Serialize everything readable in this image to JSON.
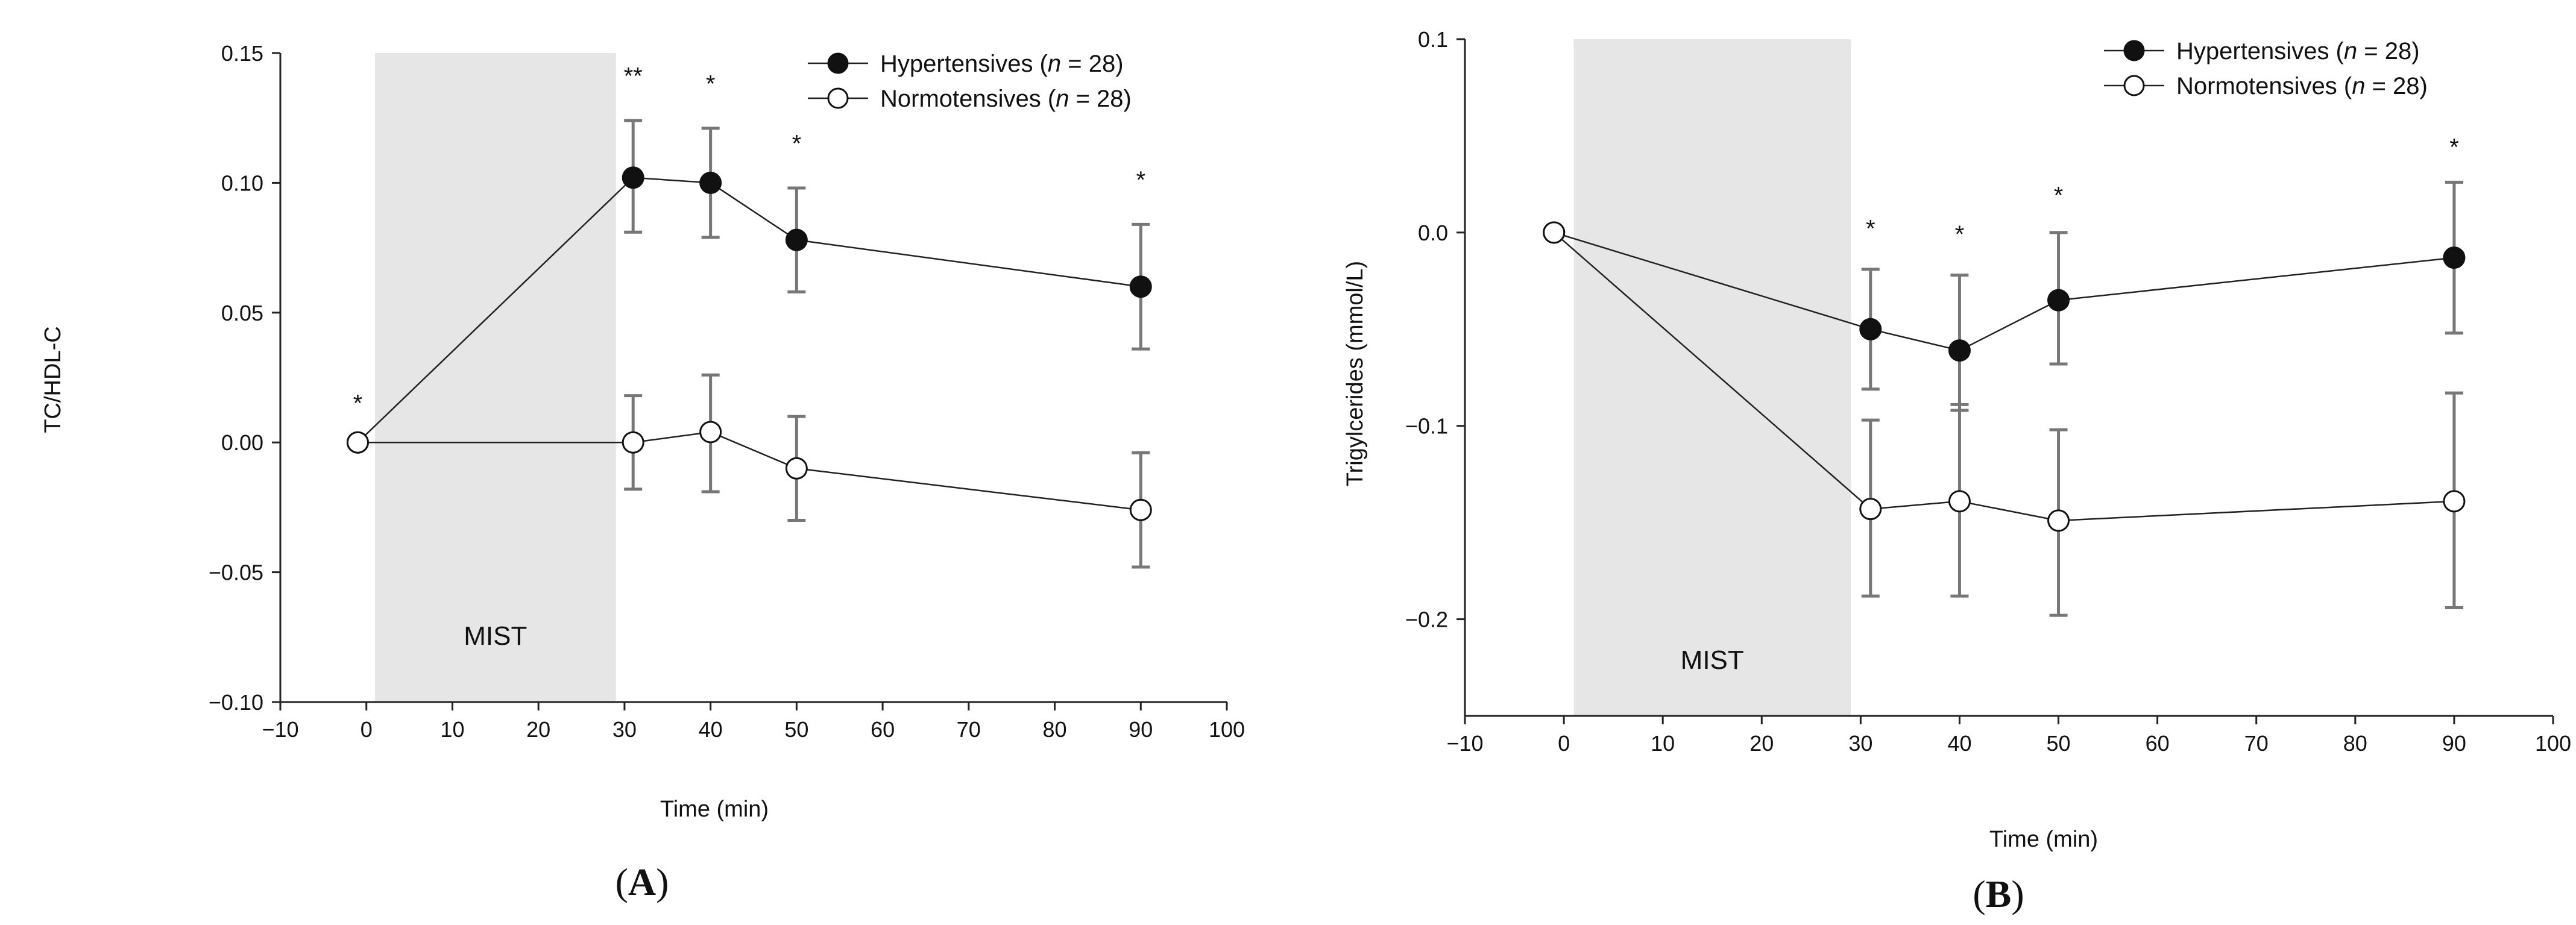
{
  "chart_data": [
    {
      "type": "line",
      "panel_label": "A",
      "xlabel": "Time (min)",
      "ylabel": "TC/HDL-C",
      "xlim": [
        -10,
        100
      ],
      "ylim": [
        -0.1,
        0.15
      ],
      "x_ticks": [
        -10,
        0,
        10,
        20,
        30,
        40,
        50,
        60,
        70,
        80,
        90,
        100
      ],
      "x_tick_labels": [
        "−10",
        "0",
        "10",
        "20",
        "30",
        "40",
        "50",
        "60",
        "70",
        "80",
        "90",
        "100"
      ],
      "y_ticks": [
        -0.1,
        -0.05,
        0.0,
        0.05,
        0.1,
        0.15
      ],
      "y_tick_labels": [
        "−0.10",
        "−0.05",
        "0.00",
        "0.05",
        "0.10",
        "0.15"
      ],
      "shaded_region": {
        "x": [
          1,
          29
        ],
        "label": "MIST",
        "color": "#e6e6e6"
      },
      "legend_position": "top-right",
      "series": [
        {
          "name": "Hypertensives",
          "n_text": "n",
          "n_value": "= 28)",
          "marker": "filled",
          "x": [
            -1,
            31,
            40,
            50,
            90
          ],
          "values": [
            0.0,
            0.102,
            0.1,
            0.078,
            0.06
          ],
          "err_low": [
            0.0,
            0.081,
            0.079,
            0.058,
            0.036
          ],
          "err_high": [
            0.0,
            0.124,
            0.121,
            0.098,
            0.084
          ]
        },
        {
          "name": "Normotensives",
          "n_text": "n",
          "n_value": "= 28)",
          "marker": "open",
          "x": [
            -1,
            31,
            40,
            50,
            90
          ],
          "values": [
            0.0,
            0.0,
            0.004,
            -0.01,
            -0.026
          ],
          "err_low": [
            0.0,
            -0.018,
            -0.019,
            -0.03,
            -0.048
          ],
          "err_high": [
            0.0,
            0.018,
            0.026,
            0.01,
            -0.004
          ]
        }
      ],
      "annotations": [
        {
          "x": -1,
          "y": 0.012,
          "text": "*"
        },
        {
          "x": 31,
          "y": 0.138,
          "text": "**"
        },
        {
          "x": 40,
          "y": 0.135,
          "text": "*"
        },
        {
          "x": 50,
          "y": 0.112,
          "text": "*"
        },
        {
          "x": 90,
          "y": 0.098,
          "text": "*"
        }
      ]
    },
    {
      "type": "line",
      "panel_label": "B",
      "xlabel": "Time (min)",
      "ylabel": "Trigylcerides (mmol/L)",
      "xlim": [
        -10,
        100
      ],
      "ylim": [
        -0.25,
        0.1
      ],
      "x_ticks": [
        -10,
        0,
        10,
        20,
        30,
        40,
        50,
        60,
        70,
        80,
        90,
        100
      ],
      "x_tick_labels": [
        "−10",
        "0",
        "10",
        "20",
        "30",
        "40",
        "50",
        "60",
        "70",
        "80",
        "90",
        "100"
      ],
      "y_ticks": [
        -0.2,
        -0.1,
        0.0,
        0.1
      ],
      "y_tick_labels": [
        "−0.2",
        "−0.1",
        "0.0",
        "0.1"
      ],
      "shaded_region": {
        "x": [
          1,
          29
        ],
        "label": "MIST",
        "color": "#e6e6e6"
      },
      "legend_position": "top-right",
      "series": [
        {
          "name": "Hypertensives",
          "n_text": "n",
          "n_value": "= 28)",
          "marker": "filled",
          "x": [
            -1,
            31,
            40,
            50,
            90
          ],
          "values": [
            0.0,
            -0.05,
            -0.061,
            -0.035,
            -0.013
          ],
          "err_low": [
            0.0,
            -0.081,
            -0.092,
            -0.068,
            -0.052
          ],
          "err_high": [
            0.0,
            -0.019,
            -0.022,
            0.0,
            0.026
          ]
        },
        {
          "name": "Normotensives",
          "n_text": "n",
          "n_value": "= 28)",
          "marker": "open",
          "x": [
            -1,
            31,
            40,
            50,
            90
          ],
          "values": [
            0.0,
            -0.143,
            -0.139,
            -0.149,
            -0.139
          ],
          "err_low": [
            0.0,
            -0.188,
            -0.188,
            -0.198,
            -0.194
          ],
          "err_high": [
            0.0,
            -0.097,
            -0.089,
            -0.102,
            -0.083
          ]
        }
      ],
      "annotations": [
        {
          "x": 31,
          "y": -0.002,
          "text": "*"
        },
        {
          "x": 40,
          "y": -0.005,
          "text": "*"
        },
        {
          "x": 50,
          "y": 0.015,
          "text": "*"
        },
        {
          "x": 90,
          "y": 0.04,
          "text": "*"
        }
      ]
    }
  ]
}
